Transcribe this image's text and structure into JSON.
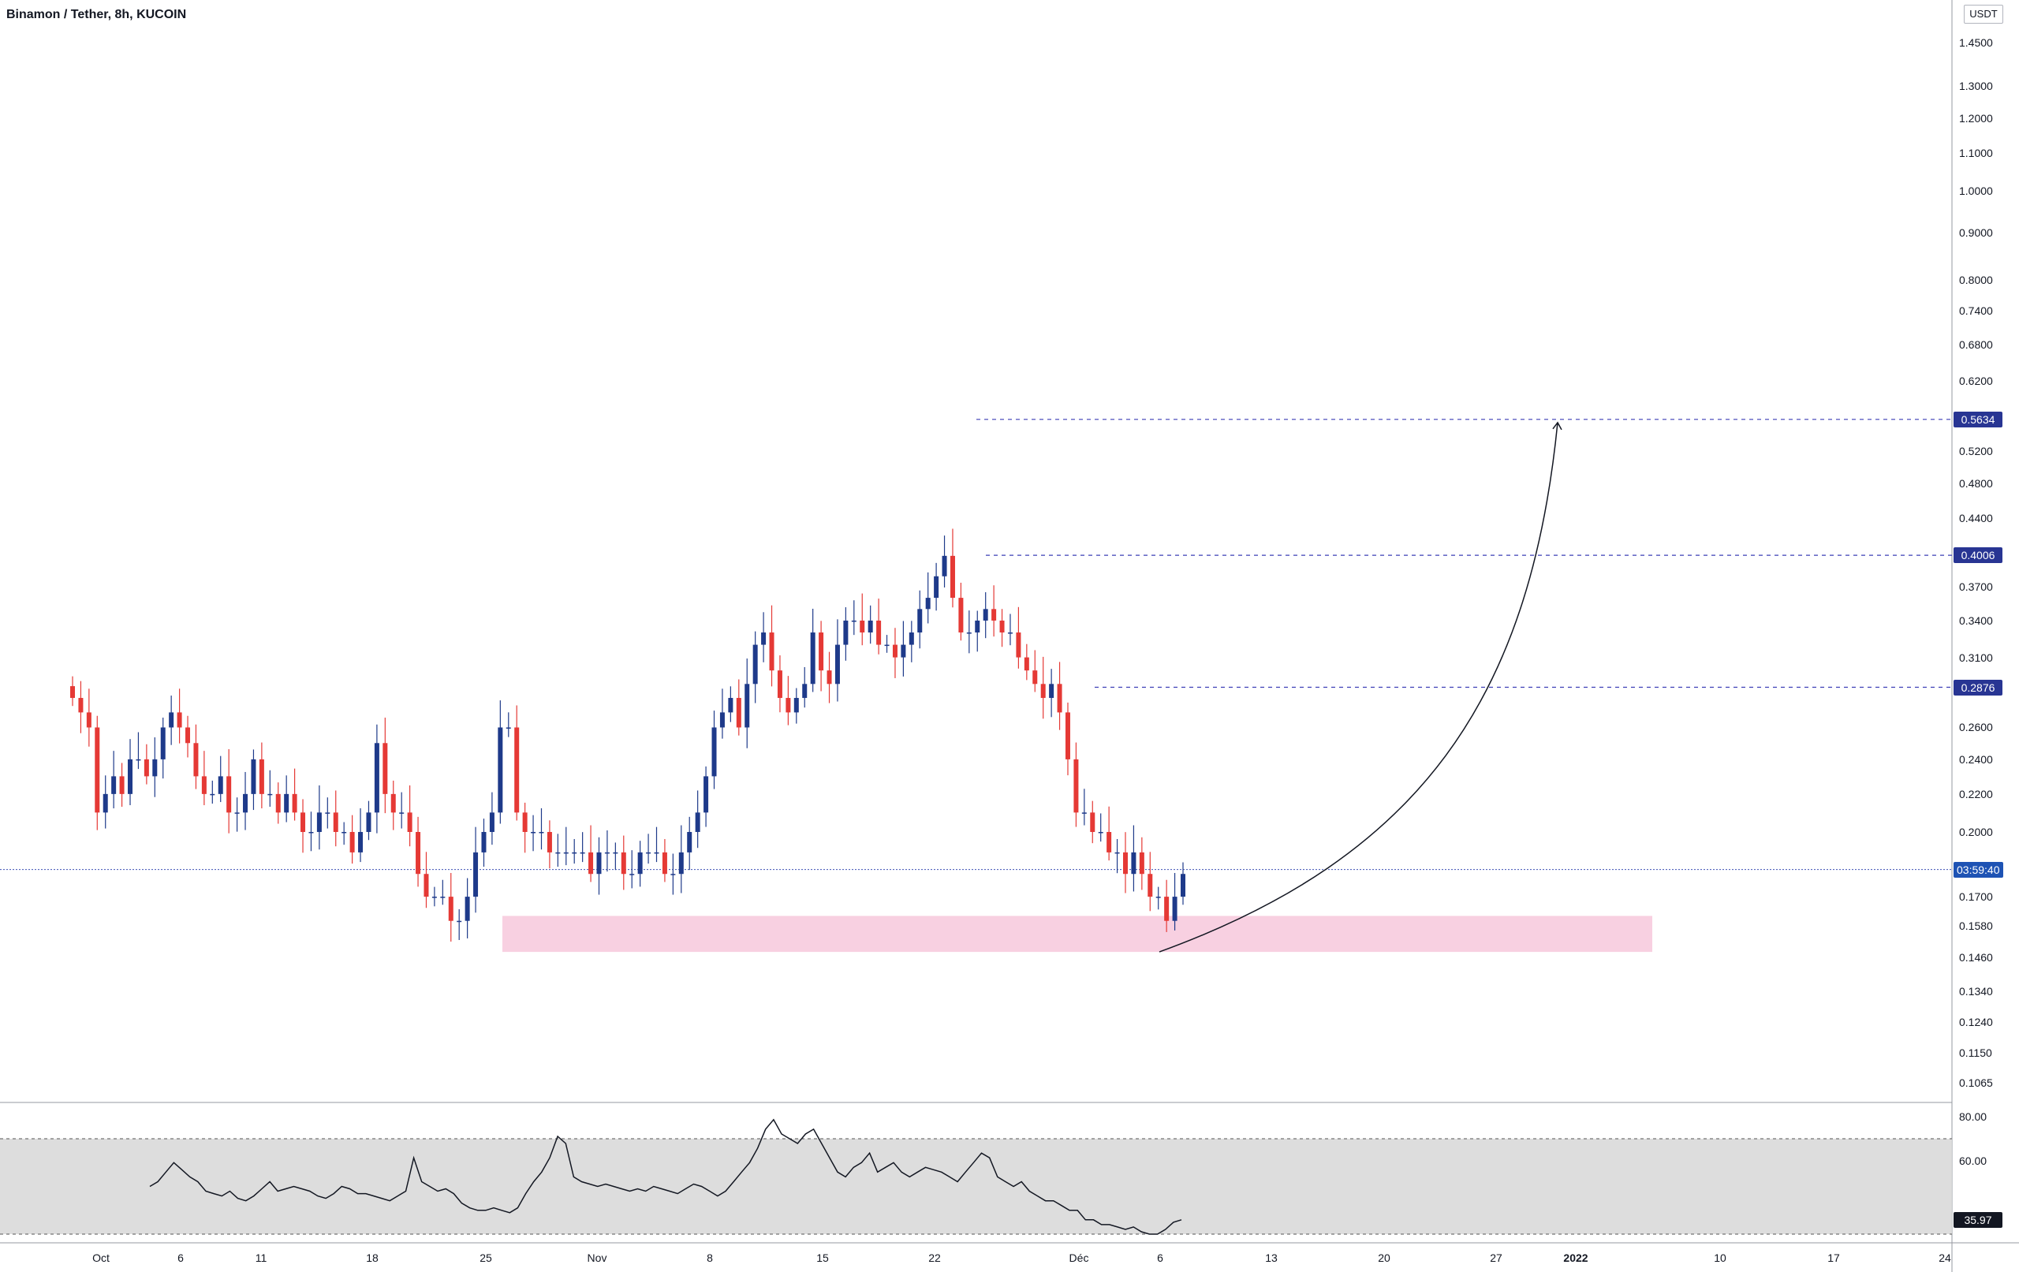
{
  "header": {
    "title": "Binamon / Tether, 8h, KUCOIN",
    "currency": "USDT"
  },
  "colors": {
    "bull": "#1e3a8a",
    "bear": "#e53935",
    "zone": "#f8d0e1",
    "rsi_band": "#d9d9d9",
    "level_line": "#3b3fb5",
    "level_label_bg": "#283593",
    "current_label_bg": "#1e53b4",
    "rsi_value_bg": "#131722"
  },
  "price_axis": {
    "ticks": [
      "1.4500",
      "1.3000",
      "1.2000",
      "1.1000",
      "1.0000",
      "0.9000",
      "0.8000",
      "0.7400",
      "0.6800",
      "0.6200",
      "0.5200",
      "0.4800",
      "0.4400",
      "0.3700",
      "0.3400",
      "0.3100",
      "0.2600",
      "0.2400",
      "0.2200",
      "0.2000",
      "0.1700",
      "0.1580",
      "0.1460",
      "0.1340",
      "0.1240",
      "0.1150",
      "0.1065"
    ],
    "scale": "log"
  },
  "rsi_axis": {
    "ticks": [
      "80.00",
      "60.00"
    ]
  },
  "time_axis": {
    "labels": [
      "Oct",
      "6",
      "11",
      "18",
      "25",
      "Nov",
      "8",
      "15",
      "22",
      "Déc",
      "6",
      "13",
      "20",
      "27",
      "2022",
      "10",
      "17",
      "24"
    ],
    "bold": [
      "2022"
    ]
  },
  "levels": [
    {
      "label": "0.5634"
    },
    {
      "label": "0.4006"
    },
    {
      "label": "0.2876"
    }
  ],
  "current_price": {
    "label": "03:59:40"
  },
  "rsi_value": {
    "label": "35.97"
  },
  "chart_data": {
    "type": "candlestick",
    "symbol": "Binamon / Tether",
    "interval": "8h",
    "exchange": "KUCOIN",
    "y_scale": "log",
    "ylim": [
      0.1065,
      1.6
    ],
    "horizontal_levels": [
      0.5634,
      0.4006,
      0.2876
    ],
    "current_price": 0.182,
    "support_zone": {
      "from": 0.148,
      "to": 0.162,
      "x_start": "Oct 25",
      "x_end": "Jan 2022"
    },
    "projection_arrow": {
      "from_price": 0.148,
      "to_price": 0.5634,
      "x_start": "Dec 6",
      "x_end": "Dec 31"
    },
    "series": [
      {
        "name": "price",
        "approximate_closes": [
          0.28,
          0.27,
          0.26,
          0.21,
          0.22,
          0.23,
          0.22,
          0.24,
          0.24,
          0.23,
          0.24,
          0.26,
          0.27,
          0.26,
          0.25,
          0.23,
          0.22,
          0.22,
          0.23,
          0.21,
          0.21,
          0.22,
          0.24,
          0.22,
          0.22,
          0.21,
          0.22,
          0.21,
          0.2,
          0.2,
          0.21,
          0.21,
          0.2,
          0.2,
          0.19,
          0.2,
          0.21,
          0.25,
          0.22,
          0.21,
          0.21,
          0.2,
          0.18,
          0.17,
          0.17,
          0.17,
          0.16,
          0.16,
          0.17,
          0.19,
          0.2,
          0.21,
          0.26,
          0.26,
          0.21,
          0.2,
          0.2,
          0.2,
          0.19,
          0.19,
          0.19,
          0.19,
          0.19,
          0.18,
          0.19,
          0.19,
          0.19,
          0.18,
          0.18,
          0.19,
          0.19,
          0.19,
          0.18,
          0.18,
          0.19,
          0.2,
          0.21,
          0.23,
          0.26,
          0.27,
          0.28,
          0.26,
          0.29,
          0.32,
          0.33,
          0.3,
          0.28,
          0.27,
          0.28,
          0.29,
          0.33,
          0.3,
          0.29,
          0.32,
          0.34,
          0.34,
          0.33,
          0.34,
          0.32,
          0.32,
          0.31,
          0.32,
          0.33,
          0.35,
          0.36,
          0.38,
          0.4,
          0.36,
          0.33,
          0.33,
          0.34,
          0.35,
          0.34,
          0.33,
          0.33,
          0.31,
          0.3,
          0.29,
          0.28,
          0.29,
          0.27,
          0.24,
          0.21,
          0.21,
          0.2,
          0.2,
          0.19,
          0.19,
          0.18,
          0.19,
          0.18,
          0.17,
          0.17,
          0.16,
          0.17,
          0.18
        ]
      }
    ],
    "rsi": {
      "upper": 70,
      "lower": 30,
      "current": 35.97,
      "values": [
        50,
        52,
        56,
        60,
        57,
        54,
        52,
        48,
        47,
        46,
        48,
        45,
        44,
        46,
        49,
        52,
        48,
        49,
        50,
        49,
        48,
        46,
        45,
        47,
        50,
        49,
        47,
        47,
        46,
        45,
        44,
        46,
        48,
        62,
        52,
        50,
        48,
        49,
        47,
        43,
        41,
        40,
        40,
        41,
        40,
        39,
        41,
        47,
        52,
        56,
        62,
        71,
        68,
        54,
        52,
        51,
        50,
        51,
        50,
        49,
        48,
        49,
        48,
        50,
        49,
        48,
        47,
        49,
        51,
        50,
        48,
        46,
        48,
        52,
        56,
        60,
        66,
        74,
        78,
        72,
        70,
        68,
        72,
        74,
        68,
        62,
        56,
        54,
        58,
        60,
        64,
        56,
        58,
        60,
        56,
        54,
        56,
        58,
        57,
        56,
        54,
        52,
        56,
        60,
        64,
        62,
        54,
        52,
        50,
        52,
        48,
        46,
        44,
        44,
        42,
        40,
        40,
        36,
        36,
        34,
        34,
        33,
        32,
        33,
        31,
        30,
        30,
        32,
        35,
        36
      ]
    }
  }
}
